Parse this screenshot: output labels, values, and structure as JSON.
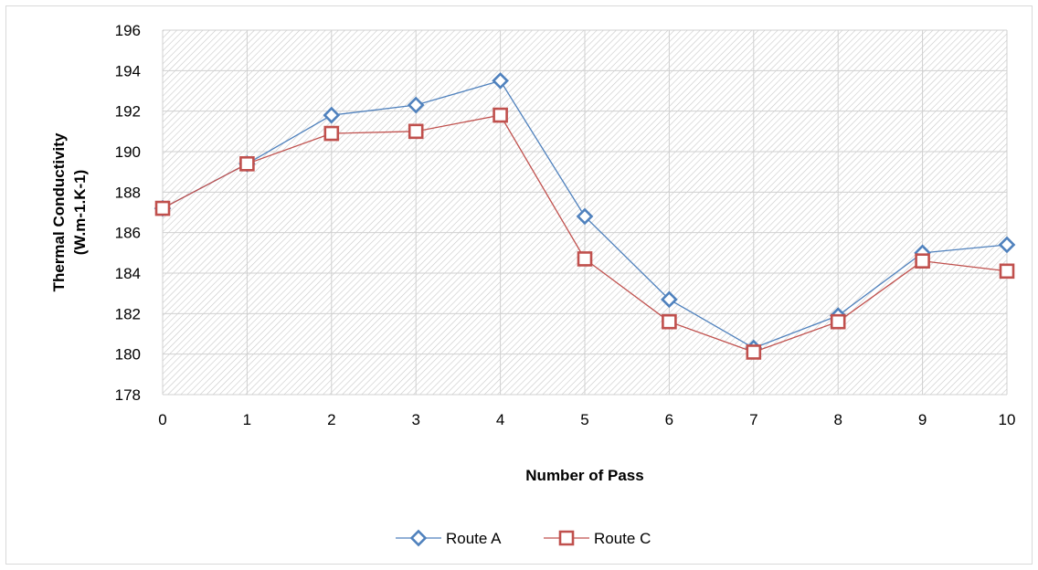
{
  "chart_data": {
    "type": "line",
    "title": "",
    "xlabel": "Number of Pass",
    "ylabel_lines": [
      "Thermal Conductivity",
      "(W.m-1.K-1)"
    ],
    "x": [
      0,
      1,
      2,
      3,
      4,
      5,
      6,
      7,
      8,
      9,
      10
    ],
    "ylim": [
      178,
      196
    ],
    "y_ticks": [
      178,
      180,
      182,
      184,
      186,
      188,
      190,
      192,
      194,
      196
    ],
    "x_ticks": [
      0,
      1,
      2,
      3,
      4,
      5,
      6,
      7,
      8,
      9,
      10
    ],
    "grid": true,
    "legend_position": "bottom",
    "series": [
      {
        "name": "Route A",
        "color": "#4f81bd",
        "marker": "diamond",
        "values": [
          187.2,
          189.4,
          191.8,
          192.3,
          193.5,
          186.8,
          182.7,
          180.3,
          181.9,
          185.0,
          185.4
        ]
      },
      {
        "name": "Route C",
        "color": "#c0504d",
        "marker": "square",
        "values": [
          187.2,
          189.4,
          190.9,
          191.0,
          191.8,
          184.7,
          181.6,
          180.1,
          181.6,
          184.6,
          184.1
        ]
      }
    ]
  }
}
